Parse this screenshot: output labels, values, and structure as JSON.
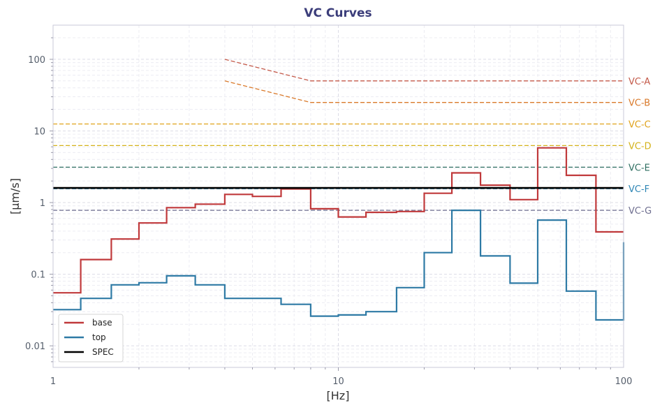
{
  "chart_data": {
    "type": "line",
    "title": "VC Curves",
    "xlabel": "[Hz]",
    "ylabel": "[µm/s]",
    "xscale": "log",
    "yscale": "log",
    "xlim": [
      1,
      100
    ],
    "ylim": [
      0.005,
      300
    ],
    "grid": true,
    "legend_position": "bottom-left",
    "x_ticks": [
      {
        "value": 1,
        "label": "1"
      },
      {
        "value": 10,
        "label": "10"
      },
      {
        "value": 100,
        "label": "100"
      }
    ],
    "y_ticks": [
      {
        "value": 0.01,
        "label": "0.01"
      },
      {
        "value": 0.1,
        "label": "0.1"
      },
      {
        "value": 1,
        "label": "1"
      },
      {
        "value": 10,
        "label": "10"
      },
      {
        "value": 100,
        "label": "100"
      }
    ],
    "series": [
      {
        "name": "base",
        "color": "#c0393b",
        "step": "post",
        "x": [
          1,
          1.25,
          1.6,
          2,
          2.5,
          3.15,
          4,
          5,
          6.3,
          8,
          10,
          12.5,
          16,
          20,
          25,
          31.5,
          40,
          50,
          63,
          80,
          100
        ],
        "y": [
          0.055,
          0.16,
          0.31,
          0.52,
          0.85,
          0.95,
          1.3,
          1.22,
          1.55,
          0.82,
          0.63,
          0.73,
          0.75,
          1.35,
          2.6,
          1.75,
          1.1,
          5.8,
          2.4,
          0.39,
          0.39
        ]
      },
      {
        "name": "top",
        "color": "#2e7aa5",
        "step": "post",
        "x": [
          1,
          1.25,
          1.6,
          2,
          2.5,
          3.15,
          4,
          5,
          6.3,
          8,
          10,
          12.5,
          16,
          20,
          25,
          31.5,
          40,
          50,
          63,
          80,
          100
        ],
        "y": [
          0.032,
          0.046,
          0.071,
          0.076,
          0.095,
          0.071,
          0.046,
          0.046,
          0.038,
          0.026,
          0.027,
          0.03,
          0.065,
          0.2,
          0.78,
          0.18,
          0.075,
          0.57,
          0.058,
          0.023,
          0.28
        ]
      },
      {
        "name": "SPEC",
        "color": "#000000",
        "x": [
          1,
          100
        ],
        "y": [
          1.6,
          1.6
        ]
      }
    ],
    "criteria": [
      {
        "label": "VC-A",
        "color": "#c45a4a",
        "x": [
          4,
          8,
          100
        ],
        "y": [
          100,
          50,
          50
        ]
      },
      {
        "label": "VC-B",
        "color": "#d9792a",
        "x": [
          4,
          8,
          100
        ],
        "y": [
          50,
          25,
          25
        ]
      },
      {
        "label": "VC-C",
        "color": "#e0a21a",
        "x": [
          1,
          100
        ],
        "y": [
          12.5,
          12.5
        ]
      },
      {
        "label": "VC-D",
        "color": "#d4b21a",
        "x": [
          1,
          100
        ],
        "y": [
          6.25,
          6.25
        ]
      },
      {
        "label": "VC-E",
        "color": "#2f6f62",
        "x": [
          1,
          100
        ],
        "y": [
          3.12,
          3.12
        ]
      },
      {
        "label": "VC-F",
        "color": "#2e86b5",
        "x": [
          1,
          100
        ],
        "y": [
          1.56,
          1.56
        ]
      },
      {
        "label": "VC-G",
        "color": "#6f6f90",
        "x": [
          1,
          100
        ],
        "y": [
          0.78,
          0.78
        ]
      }
    ]
  }
}
